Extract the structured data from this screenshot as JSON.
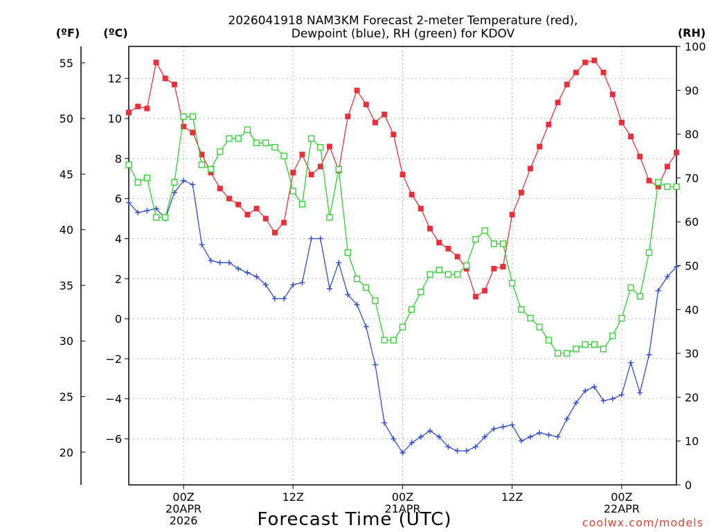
{
  "chart_data": {
    "type": "line",
    "title_line1": "2026041918 NAM3KM Forecast 2-meter Temperature (red),",
    "title_line2": "Dewpoint (blue), RH (green) for KDOV",
    "xlabel": "Forecast Time (UTC)",
    "credit": "coolwx.com/models",
    "unit_left_f": "(ºF)",
    "unit_left_c": "(ºC)",
    "unit_right": "(RH)",
    "x_range_hours": [
      -6,
      54
    ],
    "c_range": [
      -8.3,
      13.6
    ],
    "rh_range": [
      0,
      100
    ],
    "f_ticks": [
      "20",
      "25",
      "30",
      "35",
      "40",
      "45",
      "50",
      "55"
    ],
    "c_ticks": [
      "-6",
      "-4",
      "-2",
      "0",
      "2",
      "4",
      "6",
      "8",
      "10",
      "12"
    ],
    "rh_ticks": [
      "0",
      "10",
      "20",
      "30",
      "40",
      "50",
      "60",
      "70",
      "80",
      "90",
      "100"
    ],
    "x_ticks": [
      {
        "hour": 0,
        "lines": [
          "00Z",
          "20APR",
          "2026"
        ]
      },
      {
        "hour": 12,
        "lines": [
          "12Z"
        ]
      },
      {
        "hour": 24,
        "lines": [
          "00Z",
          "21APR"
        ]
      },
      {
        "hour": 36,
        "lines": [
          "12Z"
        ]
      },
      {
        "hour": 48,
        "lines": [
          "00Z",
          "22APR"
        ]
      }
    ],
    "x_hours": [
      -6,
      -5,
      -4,
      -3,
      -2,
      -1,
      0,
      1,
      2,
      3,
      4,
      5,
      6,
      7,
      8,
      9,
      10,
      11,
      12,
      13,
      14,
      15,
      16,
      17,
      18,
      19,
      20,
      21,
      22,
      23,
      24,
      25,
      26,
      27,
      28,
      29,
      30,
      31,
      32,
      33,
      34,
      35,
      36,
      37,
      38,
      39,
      40,
      41,
      42,
      43,
      44,
      45,
      46,
      47,
      48,
      49,
      50,
      51,
      52,
      53,
      54
    ],
    "series": [
      {
        "name": "2-meter Temperature",
        "unit": "°C",
        "color": "#e8303a",
        "marker": "filled-square",
        "values": [
          10.3,
          10.6,
          10.5,
          12.8,
          12.0,
          11.7,
          9.6,
          9.3,
          8.2,
          7.3,
          6.5,
          6.0,
          5.7,
          5.2,
          5.5,
          5.0,
          4.3,
          4.8,
          7.3,
          8.2,
          7.2,
          7.6,
          8.6,
          7.4,
          10.1,
          11.4,
          10.7,
          9.8,
          10.2,
          9.2,
          7.2,
          6.2,
          5.5,
          4.5,
          3.8,
          3.5,
          3.1,
          2.5,
          1.1,
          1.4,
          2.5,
          2.6,
          5.2,
          6.3,
          7.5,
          8.6,
          9.7,
          10.8,
          11.7,
          12.3,
          12.8,
          12.9,
          12.3,
          11.2,
          9.8,
          9.1,
          8.1,
          6.9,
          6.6,
          7.6,
          8.3
        ]
      },
      {
        "name": "Dewpoint",
        "unit": "°C",
        "color": "#2e4cd8",
        "marker": "plus",
        "values": [
          5.8,
          5.3,
          5.4,
          5.5,
          5.0,
          6.3,
          6.9,
          6.7,
          3.7,
          2.9,
          2.8,
          2.8,
          2.5,
          2.3,
          2.1,
          1.7,
          1.0,
          1.0,
          1.7,
          1.8,
          4.0,
          4.0,
          1.5,
          2.8,
          1.2,
          0.7,
          -0.4,
          -2.3,
          -5.2,
          -6.0,
          -6.7,
          -6.2,
          -5.9,
          -5.6,
          -5.9,
          -6.4,
          -6.6,
          -6.6,
          -6.4,
          -5.9,
          -5.5,
          -5.4,
          -5.3,
          -6.1,
          -5.9,
          -5.7,
          -5.8,
          -5.9,
          -5.0,
          -4.2,
          -3.6,
          -3.4,
          -4.1,
          -4.0,
          -3.8,
          -2.2,
          -3.7,
          -1.8,
          1.4,
          2.1,
          2.6
        ]
      },
      {
        "name": "RH",
        "unit": "%",
        "color": "#2ad02a",
        "marker": "open-square",
        "values": [
          73,
          69,
          70,
          61,
          61,
          69,
          84,
          84,
          73,
          72,
          76,
          79,
          79,
          81,
          78,
          78,
          77,
          75,
          67,
          64,
          79,
          77,
          61,
          72,
          53,
          47,
          45,
          42,
          33,
          33,
          36,
          40,
          44,
          48,
          49,
          48,
          48,
          50,
          56,
          58,
          55,
          55,
          46,
          40,
          38,
          36,
          33,
          30,
          30,
          31,
          32,
          32,
          31,
          34,
          38,
          45,
          43,
          53,
          69,
          68,
          68
        ]
      }
    ]
  }
}
